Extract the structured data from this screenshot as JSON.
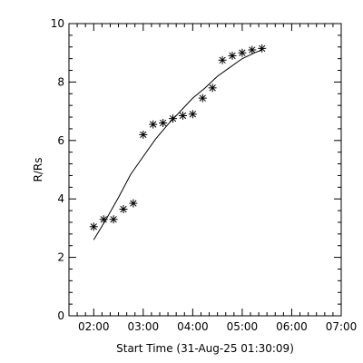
{
  "chart_data": {
    "type": "scatter",
    "xlabel": "Start Time (31-Aug-25 01:30:09)",
    "ylabel": "R/Rs",
    "x_ticks": [
      "02:00",
      "03:00",
      "04:00",
      "05:00",
      "06:00",
      "07:00"
    ],
    "x_tick_hours": [
      2,
      3,
      4,
      5,
      6,
      7
    ],
    "xlim_hours": [
      1.5,
      7.0
    ],
    "y_ticks": [
      "0",
      "2",
      "4",
      "6",
      "8",
      "10"
    ],
    "y_tick_values": [
      0,
      2,
      4,
      6,
      8,
      10
    ],
    "ylim": [
      0,
      10
    ],
    "grid": false,
    "series": [
      {
        "marker": "asterisk",
        "x": [
          "02:00",
          "02:12",
          "02:24",
          "02:36",
          "02:48",
          "03:00",
          "03:12",
          "03:24",
          "03:36",
          "03:48",
          "04:00",
          "04:12",
          "04:24",
          "04:36",
          "04:48",
          "05:00",
          "05:12",
          "05:24"
        ],
        "y": [
          3.05,
          3.3,
          3.3,
          3.65,
          3.85,
          6.2,
          6.55,
          6.6,
          6.75,
          6.85,
          6.9,
          7.45,
          7.8,
          8.75,
          8.9,
          9.0,
          9.1,
          9.15
        ]
      },
      {
        "marker": "line",
        "x": [
          "02:00",
          "02:15",
          "02:30",
          "02:45",
          "03:00",
          "03:15",
          "03:30",
          "03:45",
          "04:00",
          "04:15",
          "04:30",
          "04:45",
          "05:00",
          "05:15",
          "05:24"
        ],
        "y": [
          2.6,
          3.3,
          4.05,
          4.85,
          5.45,
          6.05,
          6.55,
          7.0,
          7.45,
          7.8,
          8.2,
          8.5,
          8.8,
          9.0,
          9.1
        ]
      }
    ]
  }
}
